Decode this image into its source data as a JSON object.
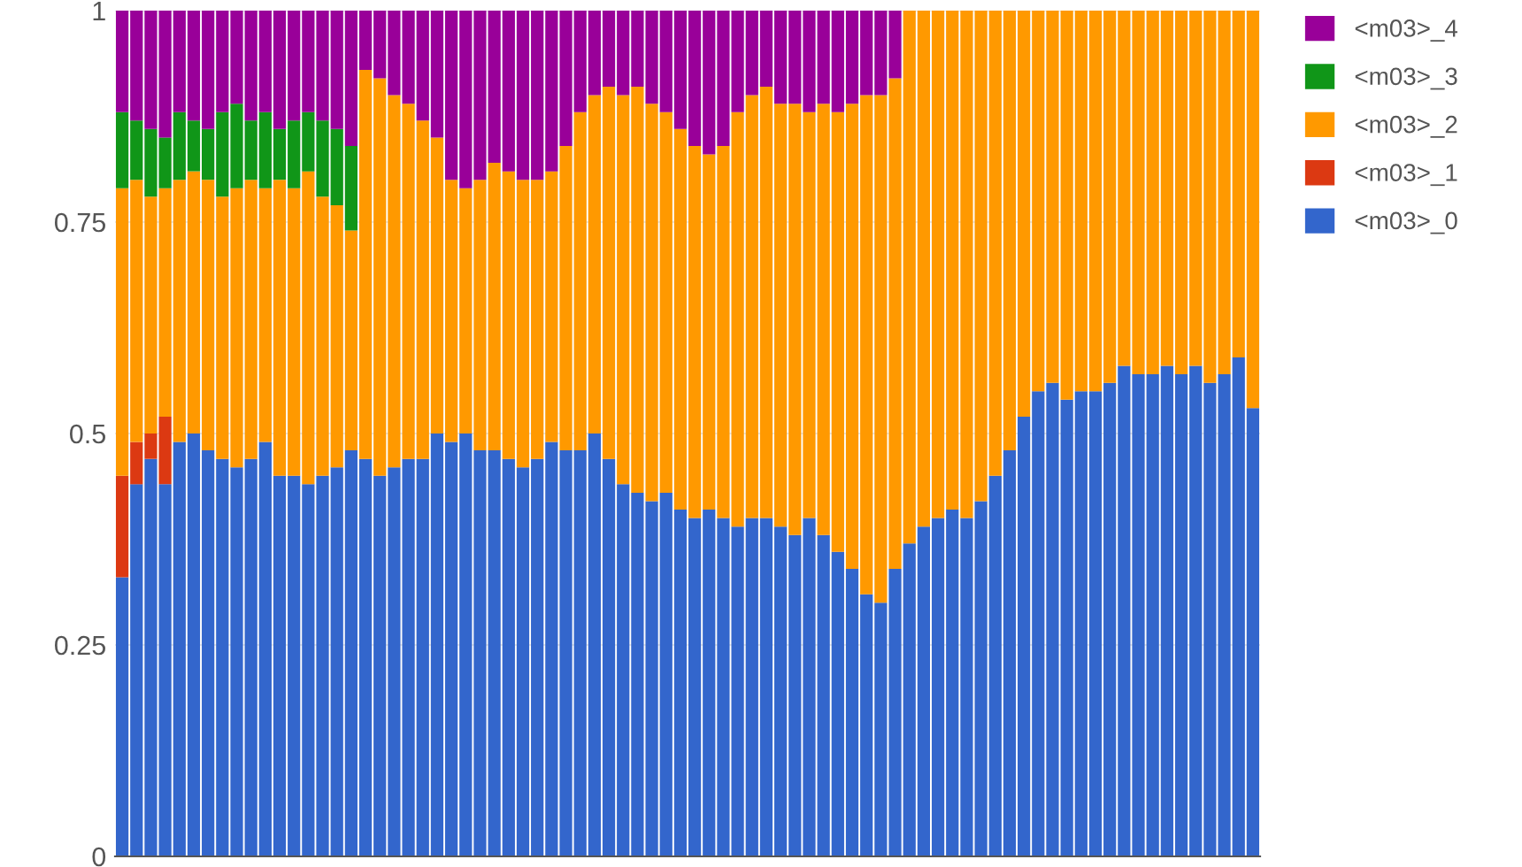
{
  "chart_data": {
    "type": "bar",
    "stacked": true,
    "categories": [
      null,
      null,
      null,
      null,
      null,
      null,
      null,
      null,
      null,
      null,
      null,
      null,
      null,
      null,
      null,
      null,
      null,
      null,
      null,
      null,
      null,
      null,
      null,
      null,
      null,
      null,
      null,
      null,
      null,
      null,
      null,
      null,
      null,
      null,
      null,
      null,
      null,
      null,
      null,
      null,
      null,
      null,
      null,
      null,
      null,
      null,
      null,
      null,
      null,
      null,
      null,
      null,
      null,
      null,
      null,
      null,
      null,
      null,
      null,
      null,
      null,
      null,
      null,
      null,
      null,
      null,
      null,
      null,
      null,
      null,
      null,
      null,
      null,
      null,
      null,
      null,
      null,
      null,
      null,
      null
    ],
    "series": [
      {
        "name": "<m03>_0",
        "color": "#3366cc",
        "values": [
          0.33,
          0.44,
          0.47,
          0.44,
          0.49,
          0.5,
          0.48,
          0.47,
          0.46,
          0.47,
          0.49,
          0.45,
          0.45,
          0.44,
          0.45,
          0.46,
          0.48,
          0.47,
          0.45,
          0.46,
          0.47,
          0.47,
          0.5,
          0.49,
          0.5,
          0.48,
          0.48,
          0.47,
          0.46,
          0.47,
          0.49,
          0.48,
          0.48,
          0.5,
          0.47,
          0.44,
          0.43,
          0.42,
          0.43,
          0.41,
          0.4,
          0.41,
          0.4,
          0.39,
          0.4,
          0.4,
          0.39,
          0.38,
          0.4,
          0.38,
          0.36,
          0.34,
          0.31,
          0.3,
          0.34,
          0.37,
          0.39,
          0.4,
          0.41,
          0.4,
          0.42,
          0.45,
          0.48,
          0.52,
          0.55,
          0.56,
          0.54,
          0.55,
          0.55,
          0.56,
          0.58,
          0.57,
          0.57,
          0.58,
          0.57,
          0.58,
          0.56,
          0.57,
          0.59,
          0.53
        ]
      },
      {
        "name": "<m03>_1",
        "color": "#dc3912",
        "values": [
          0.12,
          0.05,
          0.03,
          0.08,
          0,
          0,
          0,
          0,
          0,
          0,
          0,
          0,
          0,
          0,
          0,
          0,
          0,
          0,
          0,
          0,
          0,
          0,
          0,
          0,
          0,
          0,
          0,
          0,
          0,
          0,
          0,
          0,
          0,
          0,
          0,
          0,
          0,
          0,
          0,
          0,
          0,
          0,
          0,
          0,
          0,
          0,
          0,
          0,
          0,
          0,
          0,
          0,
          0,
          0,
          0,
          0,
          0,
          0,
          0,
          0,
          0,
          0,
          0,
          0,
          0,
          0,
          0,
          0,
          0,
          0,
          0,
          0,
          0,
          0,
          0,
          0,
          0,
          0,
          0,
          0
        ]
      },
      {
        "name": "<m03>_2",
        "color": "#ff9900",
        "values": [
          0.34,
          0.31,
          0.28,
          0.27,
          0.31,
          0.31,
          0.32,
          0.31,
          0.33,
          0.33,
          0.3,
          0.35,
          0.34,
          0.37,
          0.33,
          0.31,
          0.26,
          0.46,
          0.47,
          0.44,
          0.42,
          0.4,
          0.35,
          0.31,
          0.29,
          0.32,
          0.34,
          0.34,
          0.34,
          0.33,
          0.32,
          0.36,
          0.4,
          0.4,
          0.44,
          0.46,
          0.48,
          0.47,
          0.45,
          0.45,
          0.44,
          0.42,
          0.44,
          0.49,
          0.5,
          0.51,
          0.5,
          0.51,
          0.48,
          0.51,
          0.52,
          0.55,
          0.59,
          0.6,
          0.58,
          0.63,
          0.61,
          0.6,
          0.59,
          0.6,
          0.58,
          0.55,
          0.52,
          0.48,
          0.45,
          0.44,
          0.46,
          0.45,
          0.45,
          0.44,
          0.42,
          0.43,
          0.43,
          0.42,
          0.43,
          0.42,
          0.44,
          0.43,
          0.41,
          0.47
        ]
      },
      {
        "name": "<m03>_3",
        "color": "#109618",
        "values": [
          0.09,
          0.07,
          0.08,
          0.06,
          0.08,
          0.06,
          0.06,
          0.1,
          0.1,
          0.07,
          0.09,
          0.06,
          0.08,
          0.07,
          0.09,
          0.09,
          0.1,
          0,
          0,
          0,
          0,
          0,
          0,
          0,
          0,
          0,
          0,
          0,
          0,
          0,
          0,
          0,
          0,
          0,
          0,
          0,
          0,
          0,
          0,
          0,
          0,
          0,
          0,
          0,
          0,
          0,
          0,
          0,
          0,
          0,
          0,
          0,
          0,
          0,
          0,
          0,
          0,
          0,
          0,
          0,
          0,
          0,
          0,
          0,
          0,
          0,
          0,
          0,
          0,
          0,
          0,
          0,
          0,
          0,
          0,
          0,
          0,
          0,
          0,
          0
        ]
      },
      {
        "name": "<m03>_4",
        "color": "#990099",
        "values": [
          0.12,
          0.13,
          0.14,
          0.15,
          0.12,
          0.13,
          0.14,
          0.12,
          0.11,
          0.13,
          0.12,
          0.14,
          0.13,
          0.12,
          0.13,
          0.14,
          0.16,
          0.07,
          0.08,
          0.1,
          0.11,
          0.13,
          0.15,
          0.2,
          0.21,
          0.2,
          0.18,
          0.19,
          0.2,
          0.2,
          0.19,
          0.16,
          0.12,
          0.1,
          0.09,
          0.1,
          0.09,
          0.11,
          0.12,
          0.14,
          0.16,
          0.17,
          0.16,
          0.12,
          0.1,
          0.09,
          0.11,
          0.11,
          0.12,
          0.11,
          0.12,
          0.11,
          0.1,
          0.1,
          0.08,
          0,
          0,
          0,
          0,
          0,
          0,
          0,
          0,
          0,
          0,
          0,
          0,
          0,
          0,
          0,
          0,
          0,
          0,
          0,
          0,
          0,
          0,
          0,
          0,
          0
        ]
      }
    ],
    "ylim": [
      0,
      1
    ],
    "yticks": [
      0,
      0.25,
      0.5,
      0.75,
      1
    ],
    "grid": "y",
    "legend": "top right"
  }
}
